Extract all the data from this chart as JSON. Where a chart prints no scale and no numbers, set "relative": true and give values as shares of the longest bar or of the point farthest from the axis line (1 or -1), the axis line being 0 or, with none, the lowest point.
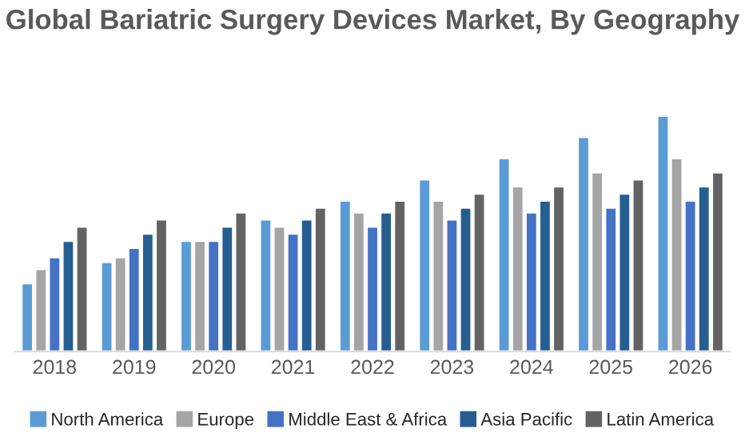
{
  "chart_data": {
    "type": "bar",
    "title": "Global Bariatric Surgery Devices Market, By Geography",
    "relative": true,
    "categories": [
      "2018",
      "2019",
      "2020",
      "2021",
      "2022",
      "2023",
      "2024",
      "2025",
      "2026"
    ],
    "series": [
      {
        "name": "North America",
        "color": "#5b9bd5",
        "values": [
          0.29,
          0.38,
          0.47,
          0.56,
          0.64,
          0.73,
          0.82,
          0.91,
          1
        ]
      },
      {
        "name": "Europe",
        "color": "#a5a5a5",
        "values": [
          0.35,
          0.4,
          0.47,
          0.53,
          0.59,
          0.64,
          0.7,
          0.76,
          0.82
        ]
      },
      {
        "name": "Middle East & Africa",
        "color": "#4472c4",
        "values": [
          0.4,
          0.44,
          0.47,
          0.5,
          0.53,
          0.56,
          0.59,
          0.61,
          0.64
        ]
      },
      {
        "name": "Asia Pacific",
        "color": "#255e91",
        "values": [
          0.47,
          0.5,
          0.53,
          0.56,
          0.59,
          0.61,
          0.64,
          0.67,
          0.7
        ]
      },
      {
        "name": "Latin America",
        "color": "#636363",
        "values": [
          0.53,
          0.56,
          0.59,
          0.61,
          0.64,
          0.67,
          0.7,
          0.73,
          0.76
        ]
      }
    ],
    "legend": "bottom",
    "grid": false
  }
}
